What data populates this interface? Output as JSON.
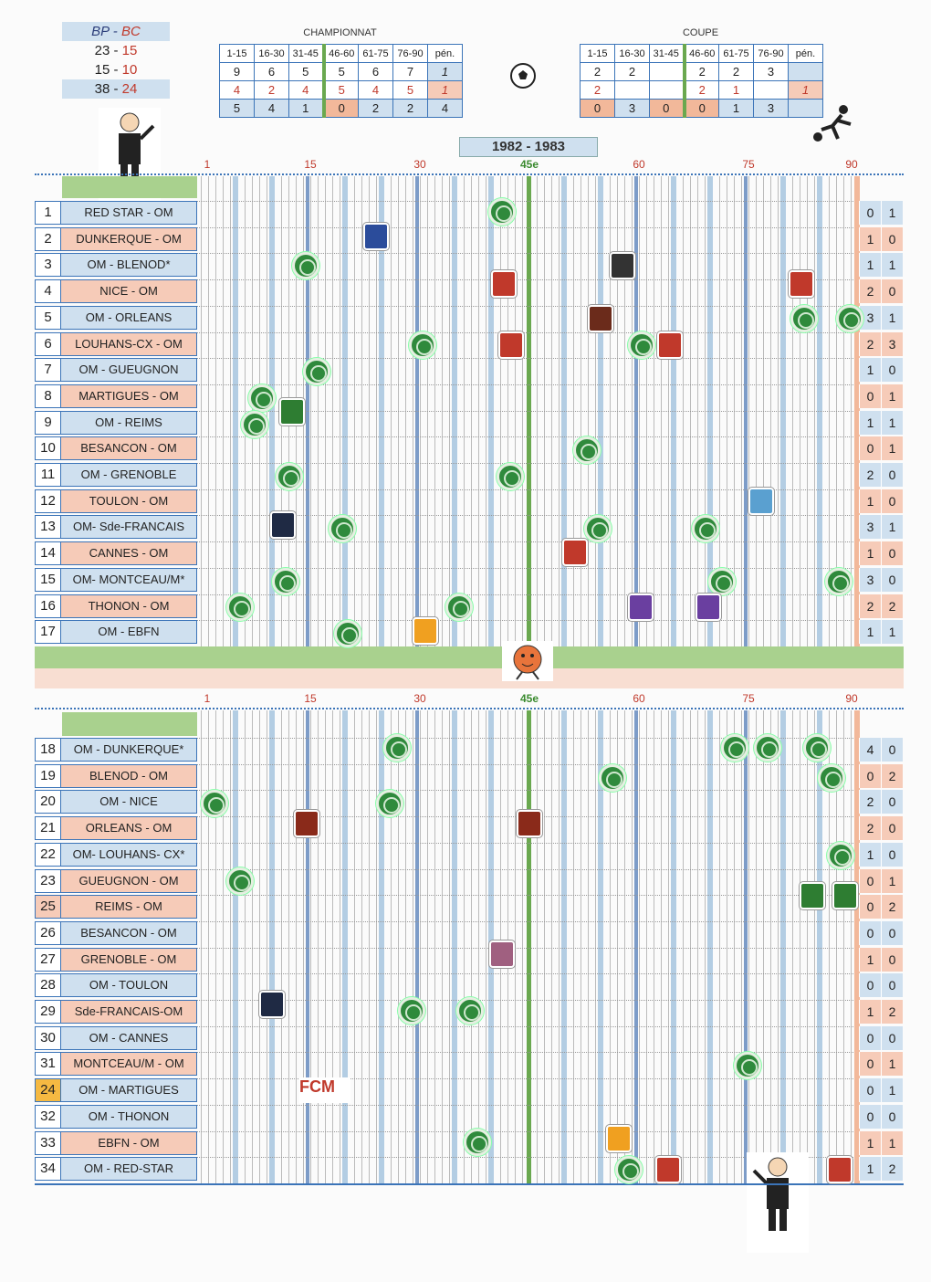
{
  "legend": {
    "bp": "BP -",
    "bc": "BC",
    "r1": [
      "23 -",
      "15"
    ],
    "r2": [
      "15 -",
      "10"
    ],
    "r3": [
      "38 -",
      "24"
    ]
  },
  "championnat": {
    "title": "CHAMPIONNAT",
    "headers": [
      "1-15",
      "16-30",
      "31-45",
      "46-60",
      "61-75",
      "76-90",
      "pén."
    ],
    "bp": [
      "9",
      "6",
      "5",
      "5",
      "6",
      "7",
      "1"
    ],
    "bc": [
      "4",
      "2",
      "4",
      "5",
      "4",
      "5",
      "1"
    ],
    "tot": [
      "5",
      "4",
      "1",
      "0",
      "2",
      "2",
      "4"
    ]
  },
  "coupe": {
    "title": "COUPE",
    "headers": [
      "1-15",
      "16-30",
      "31-45",
      "46-60",
      "61-75",
      "76-90",
      "pén."
    ],
    "bp": [
      "2",
      "2",
      "",
      "2",
      "2",
      "3",
      ""
    ],
    "bc": [
      "2",
      "",
      "",
      "2",
      "1",
      "",
      "1"
    ],
    "tot": [
      "0",
      "3",
      "0",
      "0",
      "1",
      "3",
      ""
    ]
  },
  "season": "1982 - 1983",
  "axis": {
    "m1": "1",
    "m15": "15",
    "m30": "30",
    "m45": "45e",
    "m60": "60",
    "m75": "75",
    "m90": "90"
  },
  "matches_top": [
    {
      "n": "1",
      "team": "RED STAR - OM",
      "s": [
        "0",
        "1"
      ],
      "c": "b"
    },
    {
      "n": "2",
      "team": "DUNKERQUE - OM",
      "s": [
        "1",
        "0"
      ],
      "c": "o"
    },
    {
      "n": "3",
      "team": "OM - BLENOD*",
      "s": [
        "1",
        "1"
      ],
      "c": "b"
    },
    {
      "n": "4",
      "team": "NICE - OM",
      "s": [
        "2",
        "0"
      ],
      "c": "o"
    },
    {
      "n": "5",
      "team": "OM - ORLEANS",
      "s": [
        "3",
        "1"
      ],
      "c": "b"
    },
    {
      "n": "6",
      "team": "LOUHANS-CX - OM",
      "s": [
        "2",
        "3"
      ],
      "c": "o"
    },
    {
      "n": "7",
      "team": "OM - GUEUGNON",
      "s": [
        "1",
        "0"
      ],
      "c": "b"
    },
    {
      "n": "8",
      "team": "MARTIGUES - OM",
      "s": [
        "0",
        "1"
      ],
      "c": "o"
    },
    {
      "n": "9",
      "team": "OM - REIMS",
      "s": [
        "1",
        "1"
      ],
      "c": "b"
    },
    {
      "n": "10",
      "team": "BESANCON - OM",
      "s": [
        "0",
        "1"
      ],
      "c": "o"
    },
    {
      "n": "11",
      "team": "OM - GRENOBLE",
      "s": [
        "2",
        "0"
      ],
      "c": "b"
    },
    {
      "n": "12",
      "team": "TOULON - OM",
      "s": [
        "1",
        "0"
      ],
      "c": "o"
    },
    {
      "n": "13",
      "team": "OM- Sde-FRANCAIS",
      "s": [
        "3",
        "1"
      ],
      "c": "b"
    },
    {
      "n": "14",
      "team": "CANNES - OM",
      "s": [
        "1",
        "0"
      ],
      "c": "o"
    },
    {
      "n": "15",
      "team": "OM- MONTCEAU/M*",
      "s": [
        "3",
        "0"
      ],
      "c": "b"
    },
    {
      "n": "16",
      "team": "THONON - OM",
      "s": [
        "2",
        "2"
      ],
      "c": "o"
    },
    {
      "n": "17",
      "team": "OM - EBFN",
      "s": [
        "1",
        "1"
      ],
      "c": "b"
    }
  ],
  "matches_bottom": [
    {
      "n": "18",
      "team": "OM - DUNKERQUE*",
      "s": [
        "4",
        "0"
      ],
      "c": "b"
    },
    {
      "n": "19",
      "team": "BLENOD - OM",
      "s": [
        "0",
        "2"
      ],
      "c": "o"
    },
    {
      "n": "20",
      "team": "OM - NICE",
      "s": [
        "2",
        "0"
      ],
      "c": "b"
    },
    {
      "n": "21",
      "team": "ORLEANS - OM",
      "s": [
        "2",
        "0"
      ],
      "c": "o"
    },
    {
      "n": "22",
      "team": "OM- LOUHANS- CX*",
      "s": [
        "1",
        "0"
      ],
      "c": "b"
    },
    {
      "n": "23",
      "team": "GUEUGNON - OM",
      "s": [
        "0",
        "1"
      ],
      "c": "o"
    },
    {
      "n": "25",
      "team": "REIMS - OM",
      "s": [
        "0",
        "2"
      ],
      "c": "o"
    },
    {
      "n": "26",
      "team": "BESANCON - OM",
      "s": [
        "0",
        "0"
      ],
      "c": "b"
    },
    {
      "n": "27",
      "team": "GRENOBLE - OM",
      "s": [
        "1",
        "0"
      ],
      "c": "o"
    },
    {
      "n": "28",
      "team": "OM - TOULON",
      "s": [
        "0",
        "0"
      ],
      "c": "b"
    },
    {
      "n": "29",
      "team": "Sde-FRANCAIS-OM",
      "s": [
        "1",
        "2"
      ],
      "c": "o"
    },
    {
      "n": "30",
      "team": "OM - CANNES",
      "s": [
        "0",
        "0"
      ],
      "c": "b"
    },
    {
      "n": "31",
      "team": "MONTCEAU/M - OM",
      "s": [
        "0",
        "1"
      ],
      "c": "o"
    },
    {
      "n": "24",
      "team": "OM - MARTIGUES",
      "s": [
        "0",
        "1"
      ],
      "c": "b"
    },
    {
      "n": "32",
      "team": "OM - THONON",
      "s": [
        "0",
        "0"
      ],
      "c": "b"
    },
    {
      "n": "33",
      "team": "EBFN - OM",
      "s": [
        "1",
        "1"
      ],
      "c": "o"
    },
    {
      "n": "34",
      "team": "OM - RED-STAR",
      "s": [
        "1",
        "2"
      ],
      "c": "b"
    }
  ],
  "crest_text": {
    "fcm": "FCM"
  },
  "colors": {
    "blue": "#cfe0ef",
    "orange": "#f6cbb8",
    "green": "#6aa84f",
    "red": "#c0392b"
  }
}
